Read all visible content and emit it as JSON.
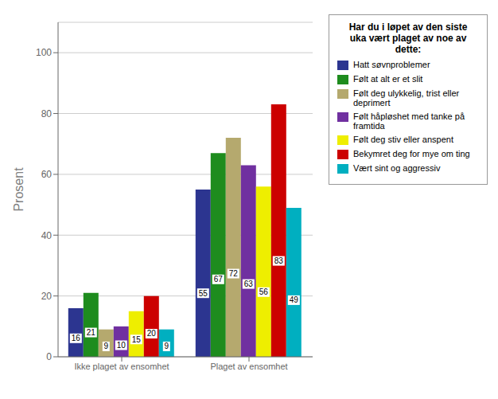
{
  "chart_data": {
    "type": "bar",
    "categories": [
      "Ikke plaget av ensomhet",
      "Plaget av ensomhet"
    ],
    "series": [
      {
        "name": "Hatt søvnproblemer",
        "color": "#2c3590",
        "values": [
          16,
          55
        ]
      },
      {
        "name": "Følt at alt er et slit",
        "color": "#1e8c1e",
        "values": [
          21,
          67
        ]
      },
      {
        "name": "Følt deg ulykkelig, trist eller deprimert",
        "color": "#b5a96e",
        "values": [
          9,
          72
        ]
      },
      {
        "name": "Følt håpløshet med tanke på framtida",
        "color": "#7030a0",
        "values": [
          10,
          63
        ]
      },
      {
        "name": "Følt deg stiv eller anspent",
        "color": "#eeee00",
        "values": [
          15,
          56
        ]
      },
      {
        "name": "Bekymret deg for mye om ting",
        "color": "#cc0000",
        "values": [
          20,
          83
        ]
      },
      {
        "name": "Vært sint og aggressiv",
        "color": "#00afc0",
        "values": [
          9,
          49
        ]
      }
    ],
    "ylabel": "Prosent",
    "ylim": [
      0,
      110
    ],
    "yticks": [
      0,
      20,
      40,
      60,
      80,
      100
    ],
    "grid": true,
    "data_labels": true,
    "legend": "right",
    "legend_title": "Har du i løpet av den siste\nuka vært plaget av noe av\ndette:"
  }
}
